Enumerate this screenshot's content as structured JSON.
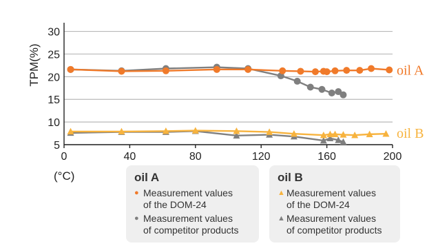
{
  "chart_data": {
    "type": "line",
    "title": "",
    "xlabel": "(°C)",
    "ylabel": "TPM(%)",
    "xlim": [
      0,
      200
    ],
    "ylim": [
      5,
      31
    ],
    "x_ticks": [
      "0",
      "40",
      "80",
      "120",
      "160",
      "200"
    ],
    "y_ticks": [
      "5",
      "10",
      "15",
      "20",
      "25",
      "30"
    ],
    "grid": "horizontal",
    "colors": {
      "orange": "#F07A2A",
      "yellow": "#F7B33E",
      "gray": "#7F7F7F"
    },
    "series": [
      {
        "legend_group": "oil A",
        "label": "Measurement values\nof the DOM-24",
        "marker": "circle",
        "color": "#F07A2A",
        "x": [
          4,
          35,
          62,
          93,
          112,
          133,
          144,
          153,
          158,
          160,
          165,
          172,
          180,
          187,
          198
        ],
        "y": [
          21.6,
          21.2,
          21.3,
          21.6,
          21.6,
          21.3,
          21.2,
          21.1,
          21.2,
          21.1,
          21.3,
          21.4,
          21.4,
          21.8,
          21.5
        ]
      },
      {
        "legend_group": "oil A",
        "label": "Measurement values\nof competitor products",
        "marker": "circle",
        "color": "#7F7F7F",
        "x": [
          4,
          35,
          62,
          93,
          112,
          132,
          142,
          150,
          157,
          163,
          167,
          170
        ],
        "y": [
          21.6,
          21.3,
          21.8,
          22.1,
          21.8,
          20.2,
          19.0,
          17.7,
          17.2,
          16.4,
          16.7,
          16.0
        ]
      },
      {
        "legend_group": "oil B",
        "label": "Measurement values\nof the DOM-24",
        "marker": "triangle",
        "color": "#F7B33E",
        "x": [
          4,
          35,
          62,
          80,
          105,
          125,
          140,
          158,
          162,
          165,
          170,
          177,
          186,
          196
        ],
        "y": [
          7.9,
          7.9,
          8.0,
          8.1,
          8.0,
          7.8,
          7.4,
          7.1,
          7.3,
          7.3,
          7.2,
          7.1,
          7.3,
          7.4
        ]
      },
      {
        "legend_group": "oil B",
        "label": "Measurement values\nof competitor products",
        "marker": "triangle",
        "color": "#7F7F7F",
        "x": [
          4,
          35,
          62,
          80,
          105,
          125,
          140,
          158,
          162,
          167,
          170
        ],
        "y": [
          7.6,
          7.8,
          7.8,
          8.0,
          7.0,
          7.2,
          6.8,
          5.9,
          6.4,
          6.0,
          5.6
        ]
      }
    ],
    "series_labels": [
      {
        "text": "oil A",
        "color": "#F07A2A",
        "y": 21.5
      },
      {
        "text": "oil B",
        "color": "#F7B33E",
        "y": 7.6
      }
    ],
    "legend": {
      "groups": [
        {
          "title": "oil A",
          "items": [
            {
              "marker": "●",
              "color": "#F07A2A",
              "text": "Measurement values\nof the DOM-24"
            },
            {
              "marker": "●",
              "color": "#7F7F7F",
              "text": "Measurement values\nof competitor products"
            }
          ]
        },
        {
          "title": "oil B",
          "items": [
            {
              "marker": "▲",
              "color": "#F7B33E",
              "text": "Measurement values\nof the DOM-24"
            },
            {
              "marker": "▲",
              "color": "#7F7F7F",
              "text": "Measurement values\nof competitor products"
            }
          ]
        }
      ]
    }
  }
}
